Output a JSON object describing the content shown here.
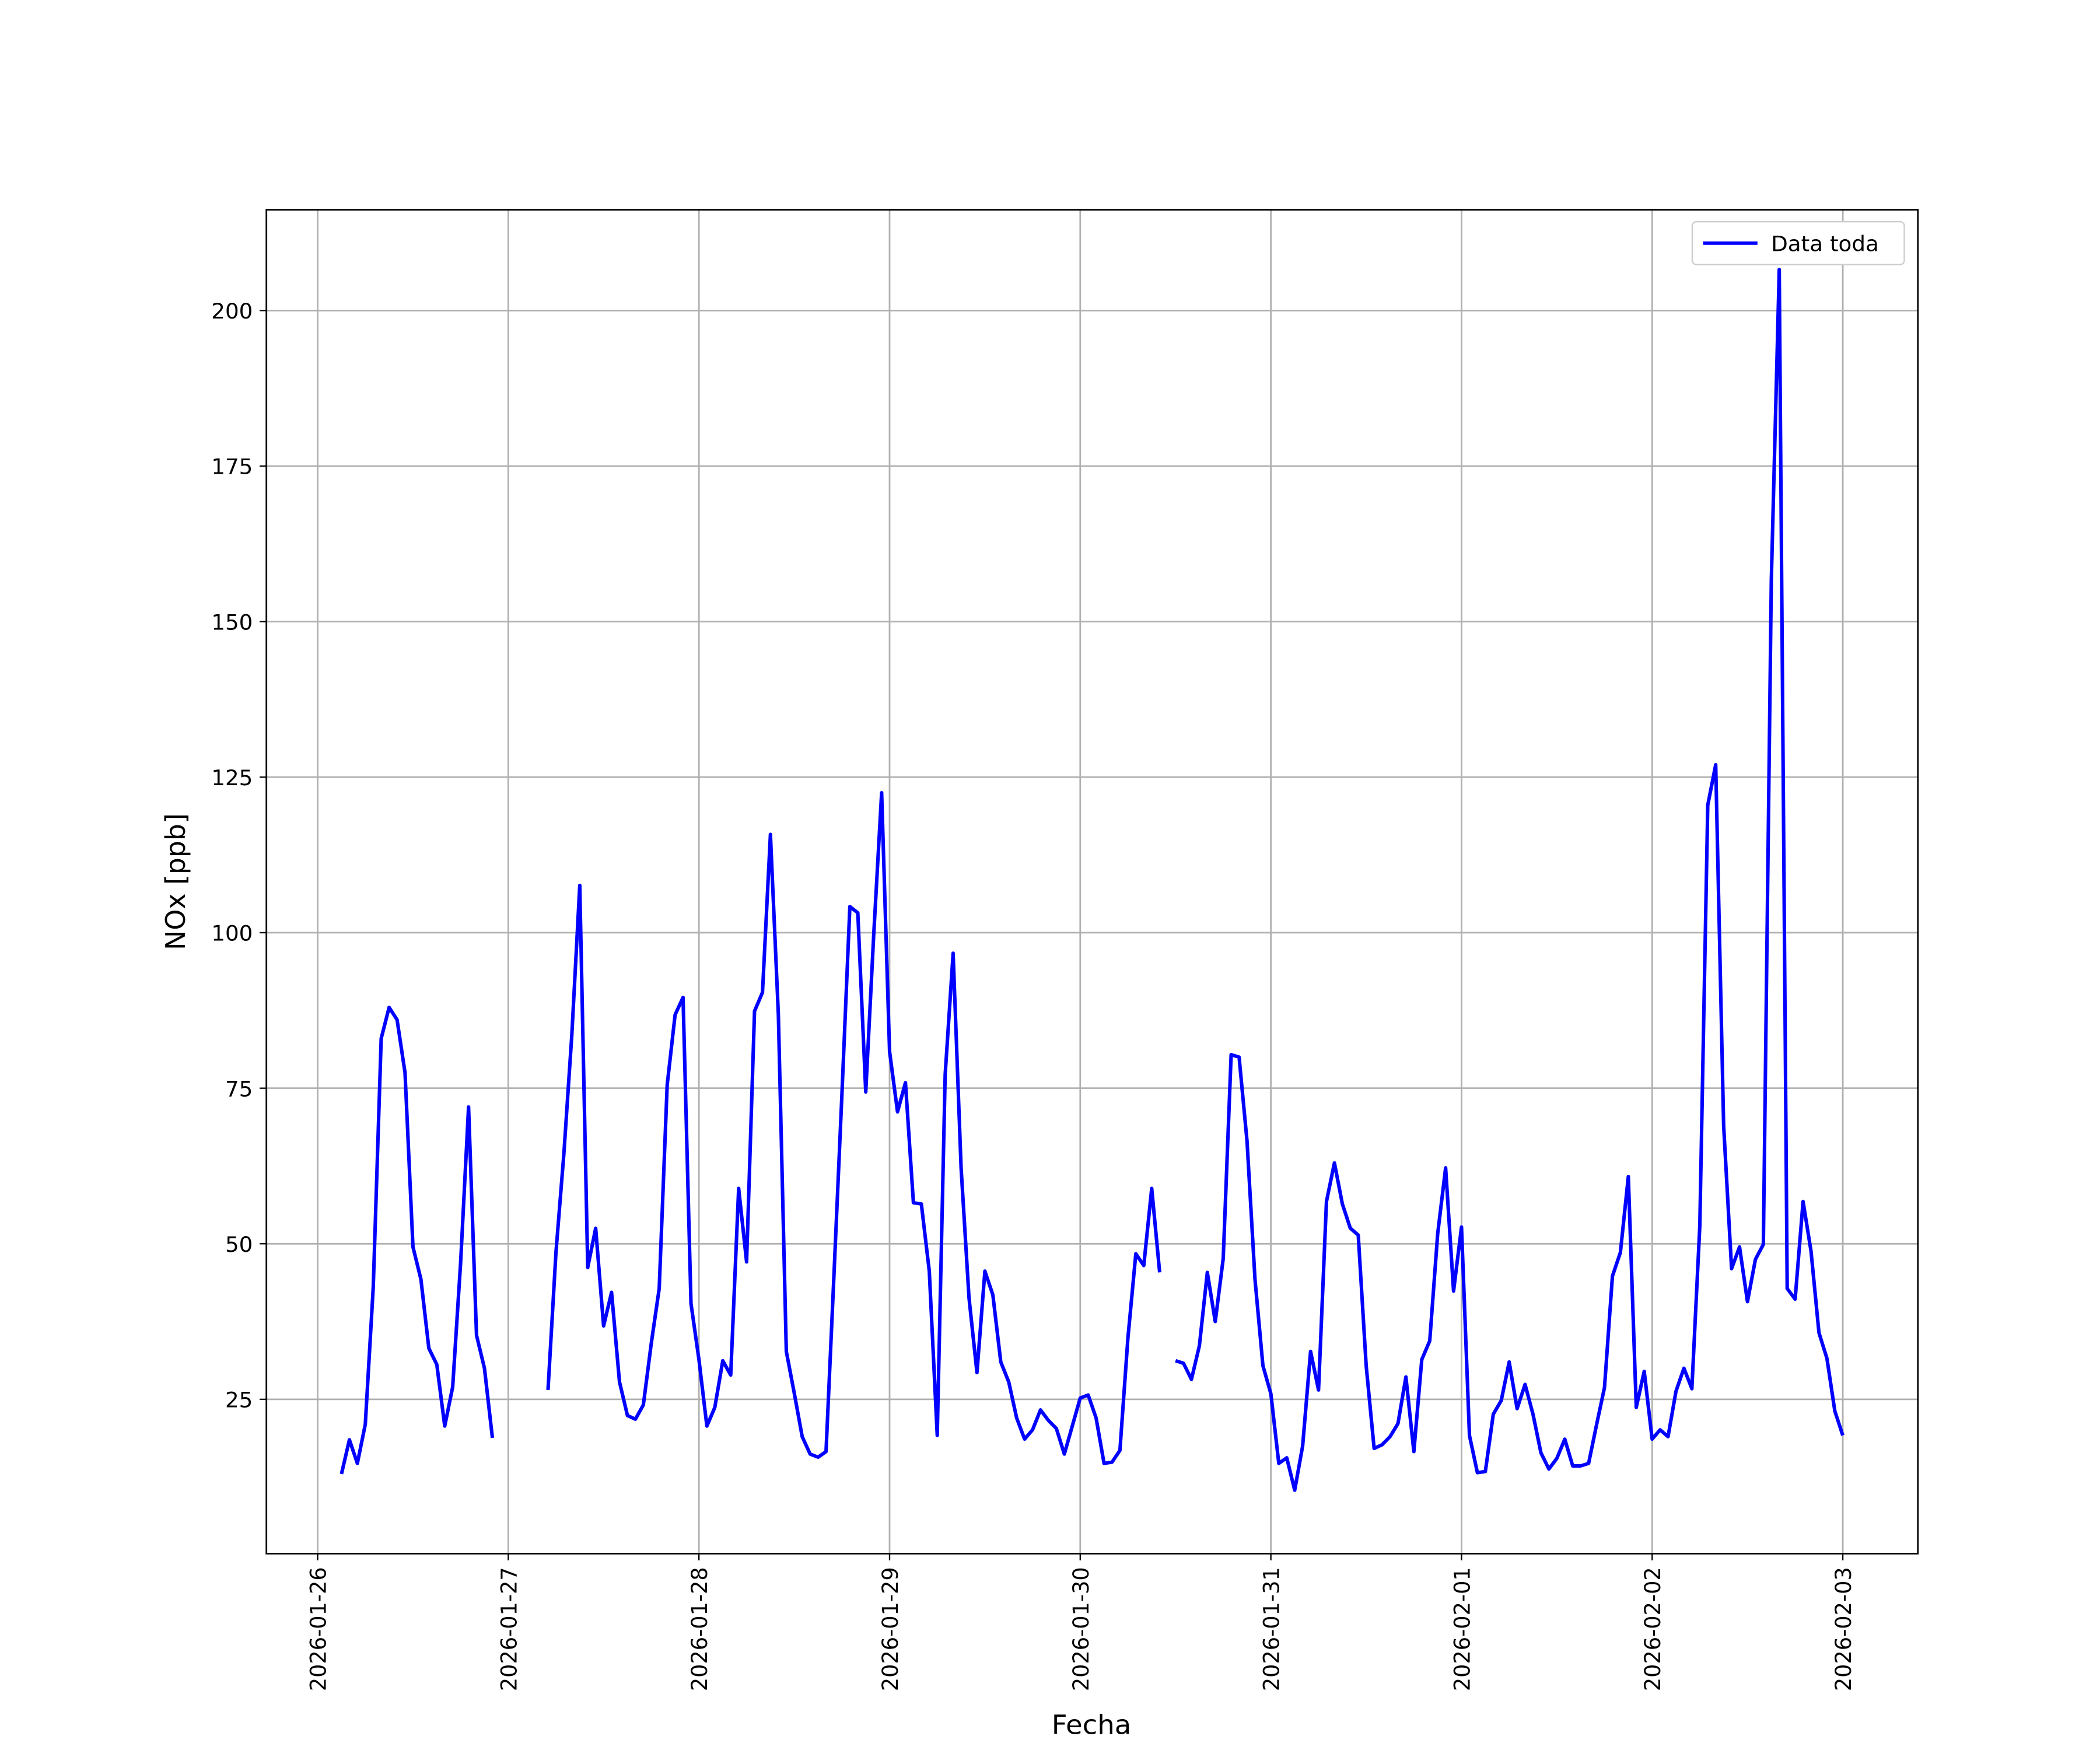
{
  "chart_data": {
    "type": "line",
    "xlabel": "Fecha",
    "ylabel": "NOx [ppb]",
    "x": [
      "2026-01-26 03:00",
      "2026-01-26 04:00",
      "2026-01-26 05:00",
      "2026-01-26 06:00",
      "2026-01-26 07:00",
      "2026-01-26 08:00",
      "2026-01-26 09:00",
      "2026-01-26 10:00",
      "2026-01-26 11:00",
      "2026-01-26 12:00",
      "2026-01-26 13:00",
      "2026-01-26 14:00",
      "2026-01-26 15:00",
      "2026-01-26 16:00",
      "2026-01-26 17:00",
      "2026-01-26 18:00",
      "2026-01-26 19:00",
      "2026-01-26 20:00",
      "2026-01-26 21:00",
      "2026-01-26 22:00",
      "2026-01-26 23:00",
      "2026-01-27 00:00",
      "2026-01-27 01:00",
      "2026-01-27 02:00",
      "2026-01-27 03:00",
      "2026-01-27 04:00",
      "2026-01-27 05:00",
      "2026-01-27 06:00",
      "2026-01-27 07:00",
      "2026-01-27 08:00",
      "2026-01-27 09:00",
      "2026-01-27 10:00",
      "2026-01-27 11:00",
      "2026-01-27 12:00",
      "2026-01-27 13:00",
      "2026-01-27 14:00",
      "2026-01-27 15:00",
      "2026-01-27 16:00",
      "2026-01-27 17:00",
      "2026-01-27 18:00",
      "2026-01-27 19:00",
      "2026-01-27 20:00",
      "2026-01-27 21:00",
      "2026-01-27 22:00",
      "2026-01-27 23:00",
      "2026-01-28 00:00",
      "2026-01-28 01:00",
      "2026-01-28 02:00",
      "2026-01-28 03:00",
      "2026-01-28 04:00",
      "2026-01-28 05:00",
      "2026-01-28 06:00",
      "2026-01-28 07:00",
      "2026-01-28 08:00",
      "2026-01-28 09:00",
      "2026-01-28 10:00",
      "2026-01-28 11:00",
      "2026-01-28 12:00",
      "2026-01-28 13:00",
      "2026-01-28 14:00",
      "2026-01-28 15:00",
      "2026-01-28 16:00",
      "2026-01-28 17:00",
      "2026-01-28 18:00",
      "2026-01-28 19:00",
      "2026-01-28 20:00",
      "2026-01-28 21:00",
      "2026-01-28 22:00",
      "2026-01-28 23:00",
      "2026-01-29 00:00",
      "2026-01-29 01:00",
      "2026-01-29 02:00",
      "2026-01-29 03:00",
      "2026-01-29 04:00",
      "2026-01-29 05:00",
      "2026-01-29 06:00",
      "2026-01-29 07:00",
      "2026-01-29 08:00",
      "2026-01-29 09:00",
      "2026-01-29 10:00",
      "2026-01-29 11:00",
      "2026-01-29 12:00",
      "2026-01-29 13:00",
      "2026-01-29 14:00",
      "2026-01-29 15:00",
      "2026-01-29 16:00",
      "2026-01-29 17:00",
      "2026-01-29 18:00",
      "2026-01-29 19:00",
      "2026-01-29 20:00",
      "2026-01-29 21:00",
      "2026-01-29 22:00",
      "2026-01-29 23:00",
      "2026-01-30 00:00",
      "2026-01-30 01:00",
      "2026-01-30 02:00",
      "2026-01-30 03:00",
      "2026-01-30 04:00",
      "2026-01-30 05:00",
      "2026-01-30 06:00",
      "2026-01-30 07:00",
      "2026-01-30 08:00",
      "2026-01-30 09:00",
      "2026-01-30 10:00",
      "2026-01-30 11:00",
      "2026-01-30 12:00",
      "2026-01-30 13:00",
      "2026-01-30 14:00",
      "2026-01-30 15:00",
      "2026-01-30 16:00",
      "2026-01-30 17:00",
      "2026-01-30 18:00",
      "2026-01-30 19:00",
      "2026-01-30 20:00",
      "2026-01-30 21:00",
      "2026-01-30 22:00",
      "2026-01-30 23:00",
      "2026-01-31 00:00",
      "2026-01-31 01:00",
      "2026-01-31 02:00",
      "2026-01-31 03:00",
      "2026-01-31 04:00",
      "2026-01-31 05:00",
      "2026-01-31 06:00",
      "2026-01-31 07:00",
      "2026-01-31 08:00",
      "2026-01-31 09:00",
      "2026-01-31 10:00",
      "2026-01-31 11:00",
      "2026-01-31 12:00",
      "2026-01-31 13:00",
      "2026-01-31 14:00",
      "2026-01-31 15:00",
      "2026-01-31 16:00",
      "2026-01-31 17:00",
      "2026-01-31 18:00",
      "2026-01-31 19:00",
      "2026-01-31 20:00",
      "2026-01-31 21:00",
      "2026-01-31 22:00",
      "2026-01-31 23:00",
      "2026-02-01 00:00",
      "2026-02-01 01:00",
      "2026-02-01 02:00",
      "2026-02-01 03:00",
      "2026-02-01 04:00",
      "2026-02-01 05:00",
      "2026-02-01 06:00",
      "2026-02-01 07:00",
      "2026-02-01 08:00",
      "2026-02-01 09:00",
      "2026-02-01 10:00",
      "2026-02-01 11:00",
      "2026-02-01 12:00",
      "2026-02-01 13:00",
      "2026-02-01 14:00",
      "2026-02-01 15:00",
      "2026-02-01 16:00",
      "2026-02-01 17:00",
      "2026-02-01 18:00",
      "2026-02-01 19:00",
      "2026-02-01 20:00",
      "2026-02-01 21:00",
      "2026-02-01 22:00",
      "2026-02-01 23:00",
      "2026-02-02 00:00",
      "2026-02-02 01:00",
      "2026-02-02 02:00",
      "2026-02-02 03:00",
      "2026-02-02 04:00",
      "2026-02-02 05:00",
      "2026-02-02 06:00",
      "2026-02-02 07:00",
      "2026-02-02 08:00",
      "2026-02-02 09:00",
      "2026-02-02 10:00",
      "2026-02-02 11:00",
      "2026-02-02 12:00",
      "2026-02-02 13:00",
      "2026-02-02 14:00",
      "2026-02-02 15:00",
      "2026-02-02 16:00",
      "2026-02-02 17:00",
      "2026-02-02 18:00",
      "2026-02-02 19:00",
      "2026-02-02 20:00",
      "2026-02-02 21:00",
      "2026-02-02 22:00",
      "2026-02-02 23:00",
      "2026-02-03 00:00"
    ],
    "series": [
      {
        "name": "Data toda",
        "color": "#0000ff",
        "values": [
          13,
          18.5,
          14.7,
          21,
          43,
          83,
          88,
          86,
          77.5,
          49.5,
          44.3,
          33.2,
          30.6,
          20.7,
          27,
          47,
          72,
          35.3,
          30,
          18.8,
          null,
          null,
          null,
          null,
          null,
          null,
          26.5,
          48.6,
          64.5,
          83.6,
          107.6,
          46.2,
          52.5,
          36.8,
          42.2,
          27.8,
          22.4,
          21.8,
          24.1,
          34,
          42.8,
          75.5,
          86.8,
          89.6,
          40.4,
          31.4,
          20.7,
          23.7,
          31.2,
          28.9,
          58.9,
          47.1,
          87.4,
          90.4,
          115.8,
          86.8,
          32.7,
          26,
          19,
          16.2,
          15.7,
          16.6,
          45,
          74,
          104.2,
          103.2,
          74.4,
          99.6,
          122.5,
          80.9,
          71.2,
          75.9,
          56.6,
          56.4,
          45.6,
          19.2,
          77.2,
          96.7,
          62.3,
          41.3,
          29.3,
          45.6,
          41.8,
          31,
          27.8,
          22,
          18.6,
          20.1,
          23.3,
          21.6,
          20.3,
          16.2,
          20.7,
          25.2,
          25.7,
          22,
          14.7,
          14.9,
          16.8,
          34.8,
          48.4,
          46.5,
          58.9,
          45.4,
          null,
          31.2,
          30.8,
          28.2,
          33.6,
          45.4,
          37.5,
          47.6,
          80.4,
          80,
          66.5,
          44.3,
          30.4,
          25.9,
          14.7,
          15.6,
          10.4,
          17.5,
          32.7,
          26.5,
          56.8,
          63,
          56.4,
          52.5,
          51.4,
          30.4,
          17.1,
          17.7,
          19,
          21.1,
          28.6,
          16.6,
          31.4,
          34.4,
          51.6,
          62.2,
          42.4,
          52.7,
          19.2,
          13.2,
          13.4,
          22.6,
          24.8,
          31,
          23.5,
          27.4,
          22.6,
          16.4,
          13.8,
          15.5,
          18.6,
          14.3,
          14.3,
          14.7,
          20.9,
          26.9,
          44.8,
          48.6,
          60.8,
          23.7,
          29.5,
          18.6,
          20.1,
          19,
          26.3,
          30,
          26.7,
          52.9,
          120.5,
          127,
          69,
          46,
          49.5,
          40.7,
          47.5,
          49.9,
          156.6,
          206.6,
          42.8,
          41.1,
          56.8,
          48.8,
          35.7,
          31.6,
          23.1,
          19.2
        ]
      }
    ],
    "xlim": [
      "2026-01-25 17:33",
      "2026-02-03 09:27"
    ],
    "xticks": [
      "2026-01-26",
      "2026-01-27",
      "2026-01-28",
      "2026-01-29",
      "2026-01-30",
      "2026-01-31",
      "2026-02-01",
      "2026-02-02",
      "2026-02-03"
    ],
    "ylim": [
      0.2,
      216.2
    ],
    "yticks": [
      25,
      50,
      75,
      100,
      125,
      150,
      175,
      200
    ],
    "grid": true,
    "legend": "upper right"
  }
}
